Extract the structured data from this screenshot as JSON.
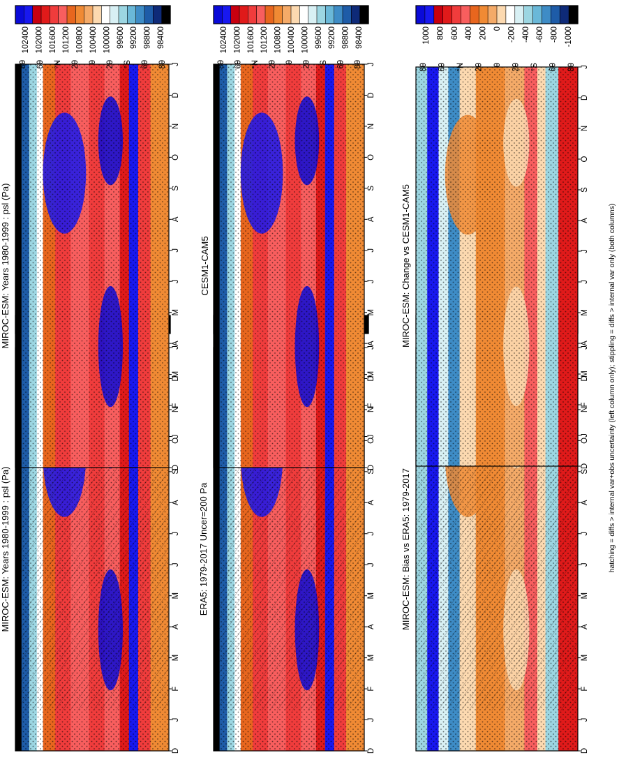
{
  "footnote": "hatching = diffs > internal var+obs uncertainty (left column only); stippling = diffs > internal var only (both columns)",
  "chart_data": [
    {
      "type": "heatmap",
      "title": "MIROC-ESM: Years 1980-1999 : psl (Pa)",
      "x_ticks": [
        "D",
        "J",
        "F",
        "M",
        "A",
        "M",
        "J",
        "J",
        "A",
        "S",
        "O",
        "N",
        "D",
        "J"
      ],
      "y_ticks": [
        "80",
        "60",
        "°N",
        "20",
        "0",
        "20",
        "°S",
        "60",
        "80"
      ],
      "colorbar_ticks": [
        "102400",
        "102000",
        "101600",
        "101200",
        "100800",
        "100400",
        "100000",
        "99600",
        "99200",
        "98800",
        "98400"
      ],
      "hatching": true,
      "stippling": true
    },
    {
      "type": "heatmap",
      "title": "MIROC-ESM: Years 1980-1999 : psl (Pa)",
      "x_ticks": [
        "D",
        "J",
        "F",
        "M",
        "A",
        "M",
        "J",
        "J",
        "A",
        "S",
        "O",
        "N",
        "D",
        "J"
      ],
      "y_ticks": [
        "80",
        "60",
        "°N",
        "20",
        "0",
        "20",
        "°S",
        "60",
        "80"
      ],
      "colorbar_ticks": [
        "102400",
        "102000",
        "101600",
        "101200",
        "100800",
        "100400",
        "100000",
        "99600",
        "99200",
        "98800",
        "98400"
      ],
      "hatching": false,
      "stippling": true
    },
    {
      "type": "heatmap",
      "title": "ERA5: 1979-2017 Uncer=200 Pa",
      "x_ticks": [
        "D",
        "J",
        "F",
        "M",
        "A",
        "M",
        "J",
        "J",
        "A",
        "S",
        "O",
        "N",
        "D",
        "J"
      ],
      "y_ticks": [
        "80",
        "60",
        "°N",
        "20",
        "0",
        "20",
        "°S",
        "60",
        "80"
      ],
      "colorbar_ticks": [
        "102400",
        "102000",
        "101600",
        "101200",
        "100800",
        "100400",
        "100000",
        "99600",
        "99200",
        "98800",
        "98400"
      ],
      "hatching": true,
      "stippling": true
    },
    {
      "type": "heatmap",
      "title": "CESM1-CAM5",
      "x_ticks": [
        "D",
        "J",
        "F",
        "M",
        "A",
        "M",
        "J",
        "J",
        "A",
        "S",
        "O",
        "N",
        "D",
        "J"
      ],
      "y_ticks": [
        "80",
        "60",
        "°N",
        "20",
        "0",
        "20",
        "°S",
        "60",
        "80"
      ],
      "colorbar_ticks": [
        "102400",
        "102000",
        "101600",
        "101200",
        "100800",
        "100400",
        "100000",
        "99600",
        "99200",
        "98800",
        "98400"
      ],
      "hatching": false,
      "stippling": true
    },
    {
      "type": "heatmap",
      "title": "MIROC-ESM: Bias vs ERA5: 1979-2017",
      "x_ticks": [
        "D",
        "J",
        "F",
        "M",
        "A",
        "M",
        "J",
        "J",
        "A",
        "S",
        "O",
        "N",
        "D",
        "J"
      ],
      "y_ticks": [
        "80",
        "60",
        "°N",
        "20",
        "0",
        "20",
        "°S",
        "60",
        "80"
      ],
      "colorbar_ticks": [
        "1000",
        "800",
        "600",
        "400",
        "200",
        "0",
        "-200",
        "-400",
        "-600",
        "-800",
        "-1000"
      ],
      "hatching": true,
      "stippling": true
    },
    {
      "type": "heatmap",
      "title": "MIROC-ESM: Change vs CESM1-CAM5",
      "x_ticks": [
        "D",
        "J",
        "F",
        "M",
        "A",
        "M",
        "J",
        "J",
        "A",
        "S",
        "O",
        "N",
        "D",
        "J"
      ],
      "y_ticks": [
        "80",
        "60",
        "°N",
        "20",
        "0",
        "20",
        "°S",
        "60",
        "80"
      ],
      "colorbar_ticks": [
        "1000",
        "800",
        "600",
        "400",
        "200",
        "0",
        "-200",
        "-400",
        "-600",
        "-800",
        "-1000"
      ],
      "hatching": false,
      "stippling": true
    }
  ],
  "colors": {
    "abs_scale": [
      "#0a0ad8",
      "#1818f0",
      "#c8000f",
      "#e01a1a",
      "#f03c3c",
      "#f85e5e",
      "#e8661e",
      "#f08a34",
      "#f4aa68",
      "#fcd9b0",
      "#ffffff",
      "#d8f0f4",
      "#9cd6e2",
      "#6ab8d8",
      "#3e8cc6",
      "#1e5ca8",
      "#0e2a78",
      "#000000"
    ],
    "diff_scale": [
      "#0a0ad8",
      "#1818f0",
      "#c8000f",
      "#e01a1a",
      "#f03c3c",
      "#f85e5e",
      "#e8661e",
      "#f08a34",
      "#f4aa68",
      "#fcd9b0",
      "#ffffff",
      "#d8f0f4",
      "#9cd6e2",
      "#6ab8d8",
      "#3e8cc6",
      "#1e5ca8",
      "#0e2a78",
      "#000000"
    ]
  }
}
